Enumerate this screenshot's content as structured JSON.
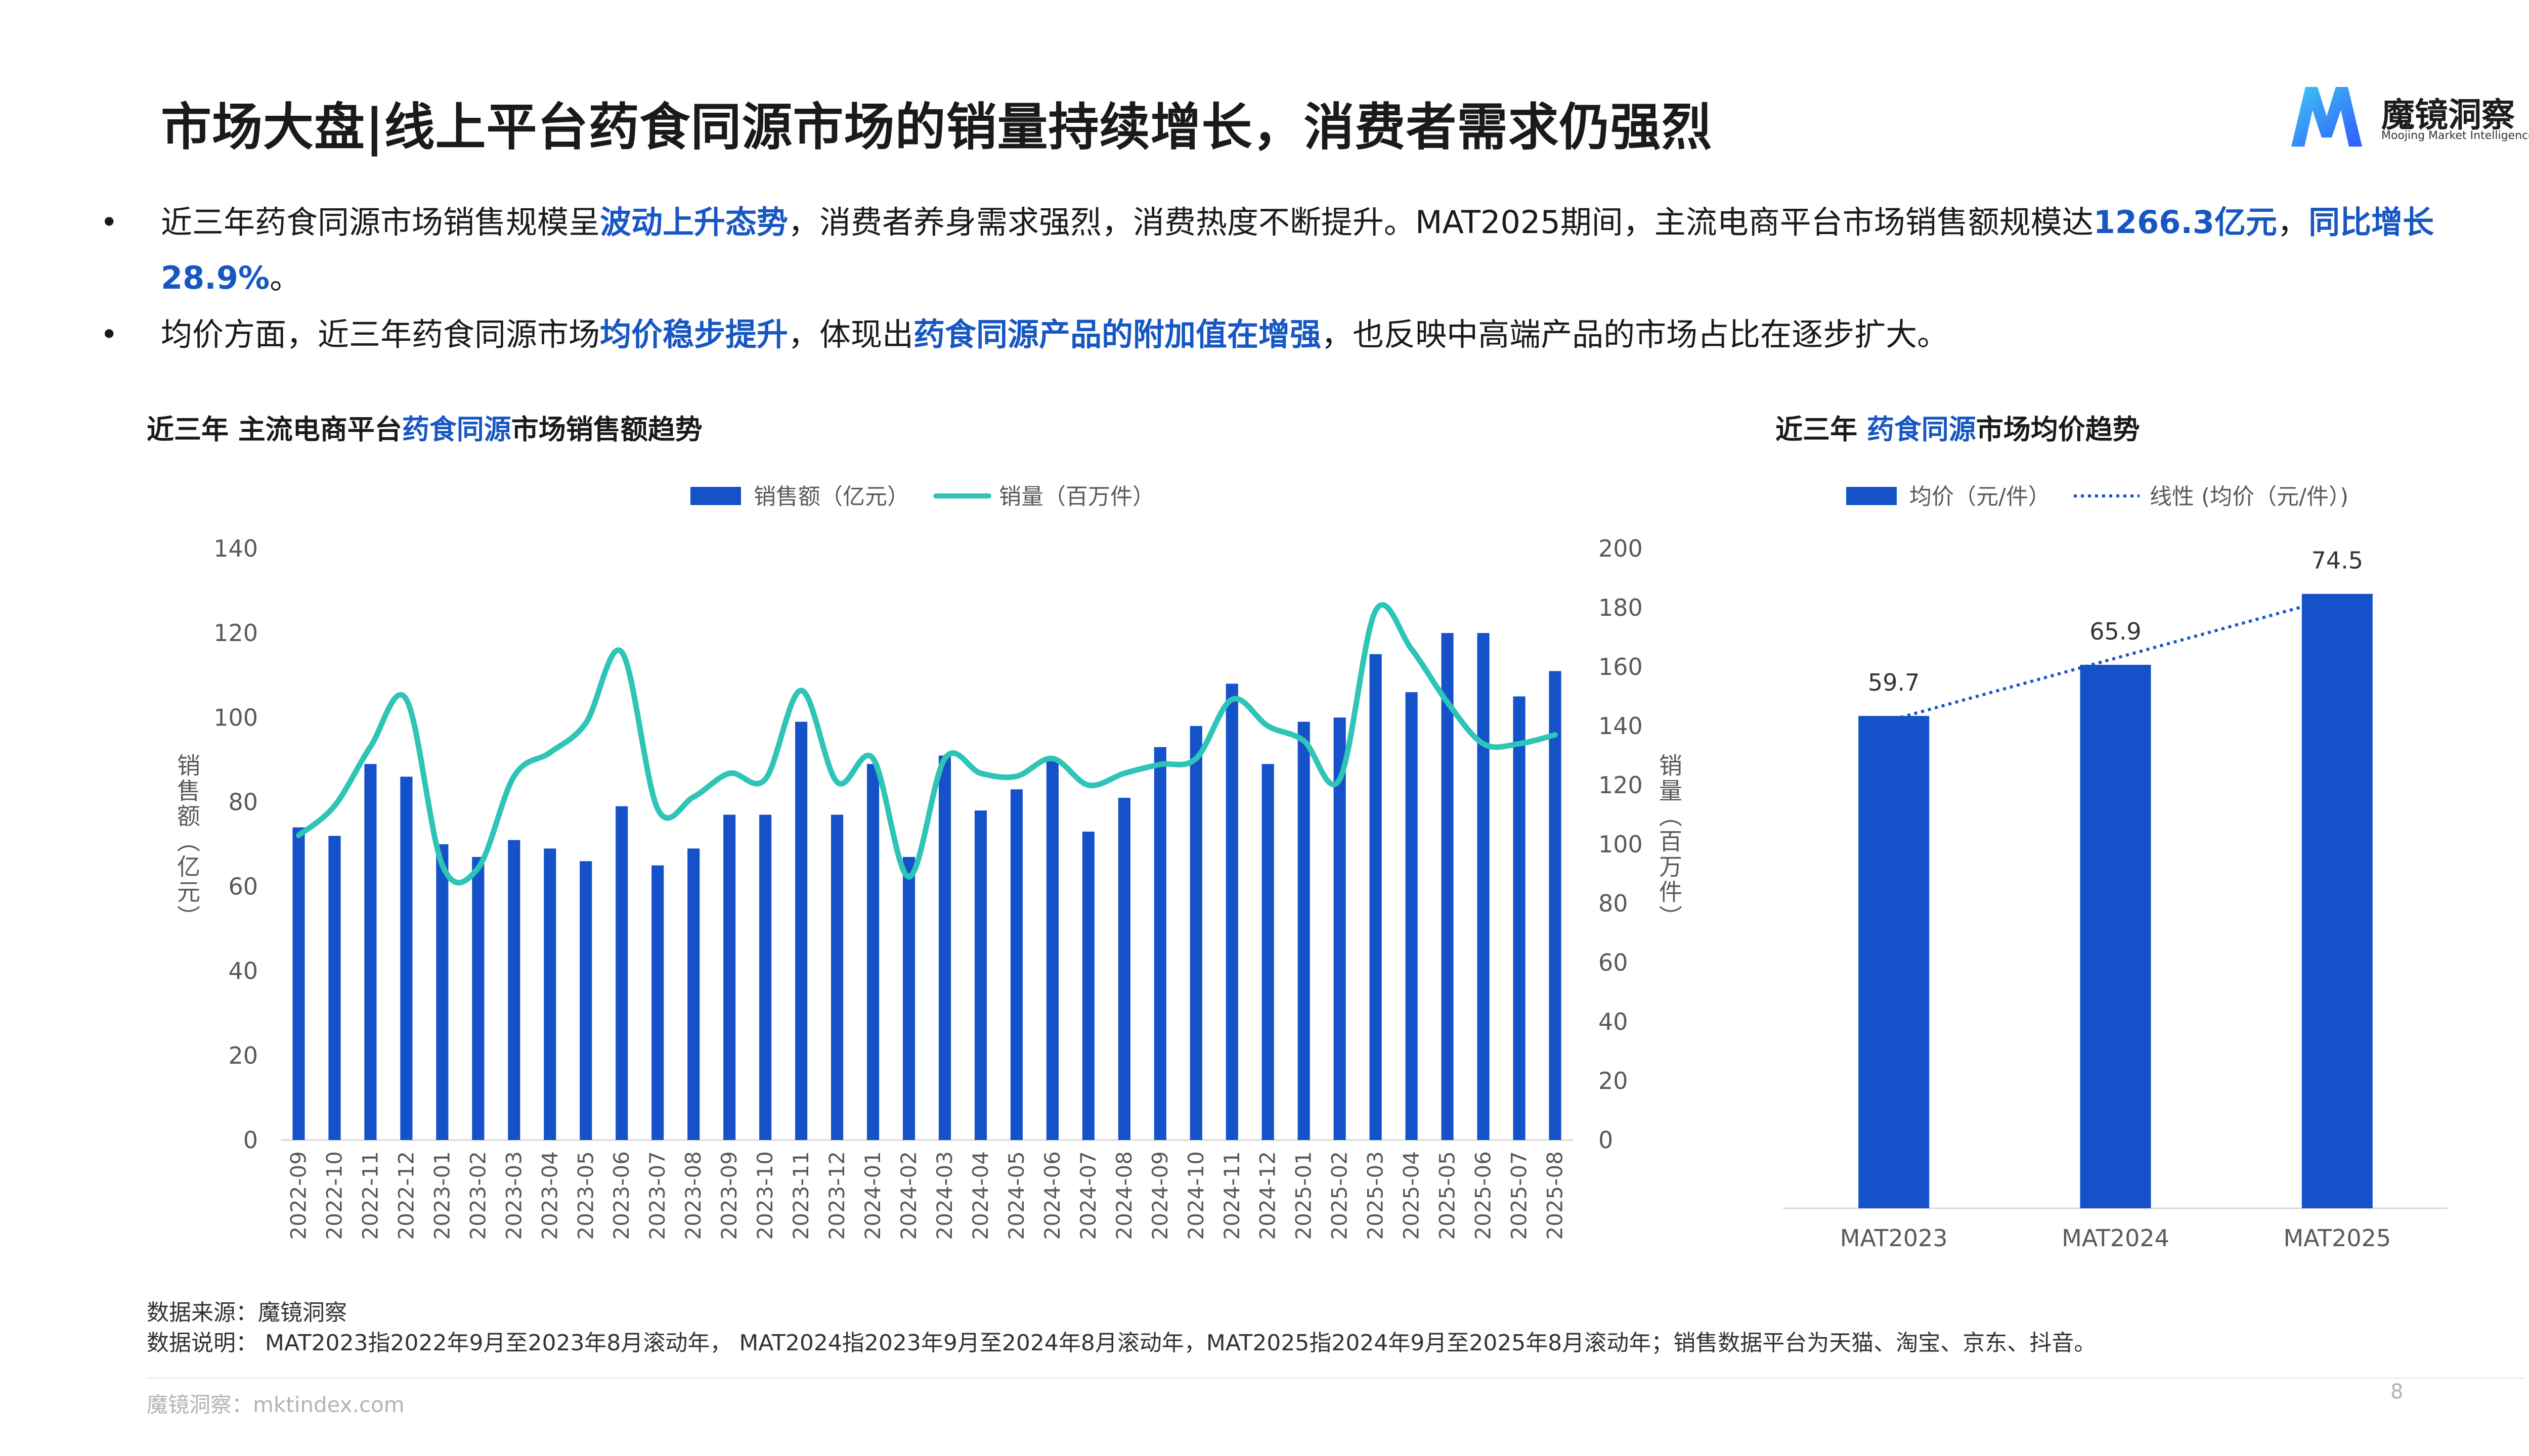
{
  "title": "市场大盘|线上平台药食同源市场的销量持续增长，消费者需求仍强烈",
  "logo": {
    "name": "魔镜洞察",
    "tagline": "Moojing Market Intelligence"
  },
  "bullets": [
    {
      "segments": [
        {
          "t": "近三年药食同源市场销售规模呈",
          "h": false
        },
        {
          "t": "波动上升态势",
          "h": true
        },
        {
          "t": "，消费者养身需求强烈，消费热度不断提升。MAT2025期间，主流电商平台市场销售额规模达",
          "h": false
        },
        {
          "t": "1266.3亿元",
          "h": true
        },
        {
          "t": "，",
          "h": false
        },
        {
          "t": "同比增长28.9%",
          "h": true
        },
        {
          "t": "。",
          "h": false
        }
      ]
    },
    {
      "segments": [
        {
          "t": "均价方面，近三年药食同源市场",
          "h": false
        },
        {
          "t": "均价稳步提升",
          "h": true
        },
        {
          "t": "，体现出",
          "h": false
        },
        {
          "t": "药食同源产品的附加值在增强",
          "h": true
        },
        {
          "t": "，也反映中高端产品的市场占比在逐步扩大。",
          "h": false
        }
      ]
    }
  ],
  "bullet_marker": "•",
  "left_chart_title": {
    "pre": "近三年 主流电商平台",
    "hl": "药食同源",
    "post": "市场销售额趋势"
  },
  "right_chart_title": {
    "pre": "近三年 ",
    "hl": "药食同源",
    "post": "市场均价趋势"
  },
  "colors": {
    "bar": "#1551c9",
    "line": "#2ec4b6",
    "accent": "#1757c2",
    "axis": "#d9d9d9",
    "text": "#595959"
  },
  "chart_data": [
    {
      "type": "bar",
      "legend": [
        "销售额（亿元）",
        "销量（百万件）"
      ],
      "legend_position": "top",
      "ylabel": "销售额（亿元）",
      "y2label": "销量（百万件）",
      "ylim": [
        0,
        140
      ],
      "y_ticks": [
        0,
        20,
        40,
        60,
        80,
        100,
        120,
        140
      ],
      "y2lim": [
        0,
        200
      ],
      "y2_ticks": [
        0,
        20,
        40,
        60,
        80,
        100,
        120,
        140,
        160,
        180,
        200
      ],
      "grid": false,
      "categories": [
        "2022-09",
        "2022-10",
        "2022-11",
        "2022-12",
        "2023-01",
        "2023-02",
        "2023-03",
        "2023-04",
        "2023-05",
        "2023-06",
        "2023-07",
        "2023-08",
        "2023-09",
        "2023-10",
        "2023-11",
        "2023-12",
        "2024-01",
        "2024-02",
        "2024-03",
        "2024-04",
        "2024-05",
        "2024-06",
        "2024-07",
        "2024-08",
        "2024-09",
        "2024-10",
        "2024-11",
        "2024-12",
        "2025-01",
        "2025-02",
        "2025-03",
        "2025-04",
        "2025-05",
        "2025-06",
        "2025-07",
        "2025-08"
      ],
      "series": [
        {
          "name": "销售额（亿元）",
          "kind": "bar",
          "axis": "left",
          "values": [
            74,
            72,
            89,
            86,
            70,
            67,
            71,
            69,
            66,
            79,
            65,
            69,
            77,
            77,
            99,
            77,
            89,
            67,
            91,
            78,
            83,
            90,
            73,
            81,
            93,
            98,
            108,
            89,
            99,
            100,
            115,
            106,
            120,
            120,
            105,
            111
          ]
        },
        {
          "name": "销量（百万件）",
          "kind": "line",
          "axis": "right",
          "values": [
            103,
            113,
            133,
            149,
            93,
            92,
            123,
            131,
            141,
            165,
            112,
            116,
            124,
            122,
            152,
            121,
            129,
            89,
            129,
            124,
            123,
            129,
            120,
            124,
            127,
            129,
            149,
            140,
            135,
            122,
            179,
            166,
            148,
            134,
            134,
            137
          ]
        }
      ]
    },
    {
      "type": "bar",
      "legend": [
        "均价（元/件）",
        "线性 (均价（元/件）)"
      ],
      "legend_position": "top",
      "categories": [
        "MAT2023",
        "MAT2024",
        "MAT2025"
      ],
      "series": [
        {
          "name": "均价（元/件）",
          "kind": "bar",
          "values": [
            59.7,
            65.9,
            74.5
          ]
        },
        {
          "name": "线性 (均价（元/件）)",
          "kind": "trendline"
        }
      ],
      "ylim": [
        0,
        80
      ],
      "data_labels": [
        "59.7",
        "65.9",
        "74.5"
      ]
    }
  ],
  "footer": {
    "source": "数据来源：魔镜洞察",
    "note": "数据说明： MAT2023指2022年9月至2023年8月滚动年， MAT2024指2023年9月至2024年8月滚动年，MAT2025指2024年9月至2025年8月滚动年；销售数据平台为天猫、淘宝、京东、抖音。",
    "site": "魔镜洞察：mktindex.com",
    "page": "8"
  }
}
